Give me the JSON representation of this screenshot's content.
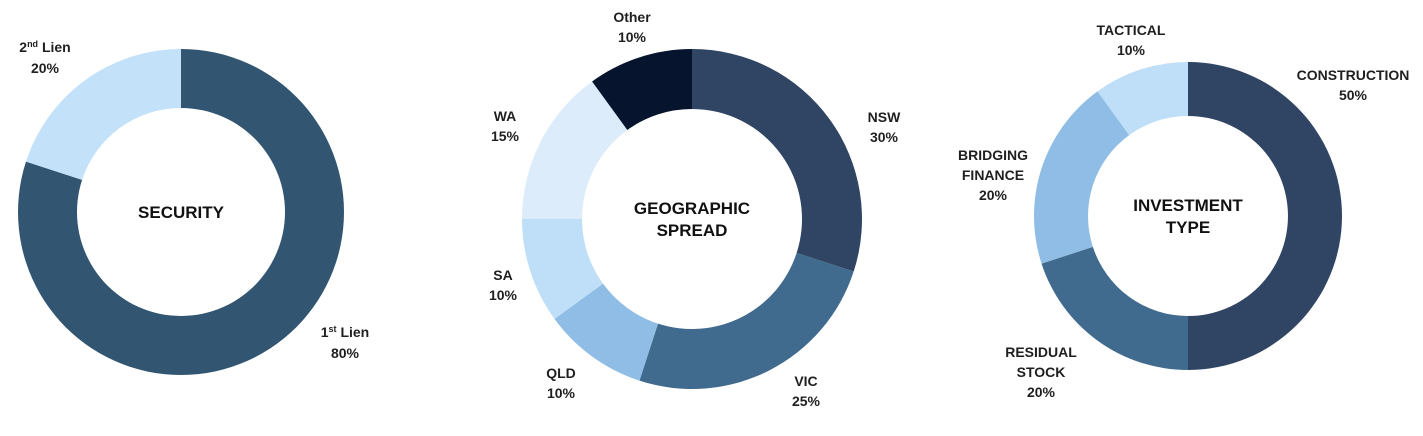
{
  "chart_data": [
    {
      "type": "pie",
      "center_label": [
        "SECURITY"
      ],
      "slices": [
        {
          "label": "1st Lien",
          "value": 80,
          "display": "80%",
          "color": "#325571"
        },
        {
          "label": "2nd Lien",
          "value": 20,
          "display": "20%",
          "color": "#c4e1fa"
        }
      ]
    },
    {
      "type": "pie",
      "center_label": [
        "GEOGRAPHIC",
        "SPREAD"
      ],
      "slices": [
        {
          "label": "NSW",
          "value": 30,
          "display": "30%",
          "color": "#2f4563"
        },
        {
          "label": "VIC",
          "value": 25,
          "display": "25%",
          "color": "#416b8e"
        },
        {
          "label": "QLD",
          "value": 10,
          "display": "10%",
          "color": "#8fbde5"
        },
        {
          "label": "SA",
          "value": 10,
          "display": "10%",
          "color": "#bfdff8"
        },
        {
          "label": "WA",
          "value": 15,
          "display": "15%",
          "color": "#dcecfb"
        },
        {
          "label": "Other",
          "value": 10,
          "display": "10%",
          "color": "#06142e"
        }
      ]
    },
    {
      "type": "pie",
      "center_label": [
        "INVESTMENT",
        "TYPE"
      ],
      "slices": [
        {
          "label": "CONSTRUCTION",
          "value": 50,
          "display": "50%",
          "color": "#2f4563"
        },
        {
          "label": "RESIDUAL STOCK",
          "value": 20,
          "display": "20%",
          "color": "#416b8e"
        },
        {
          "label": "BRIDGING FINANCE",
          "value": 20,
          "display": "20%",
          "color": "#8fbde5"
        },
        {
          "label": "TACTICAL",
          "value": 10,
          "display": "10%",
          "color": "#bfdff8"
        }
      ]
    }
  ]
}
